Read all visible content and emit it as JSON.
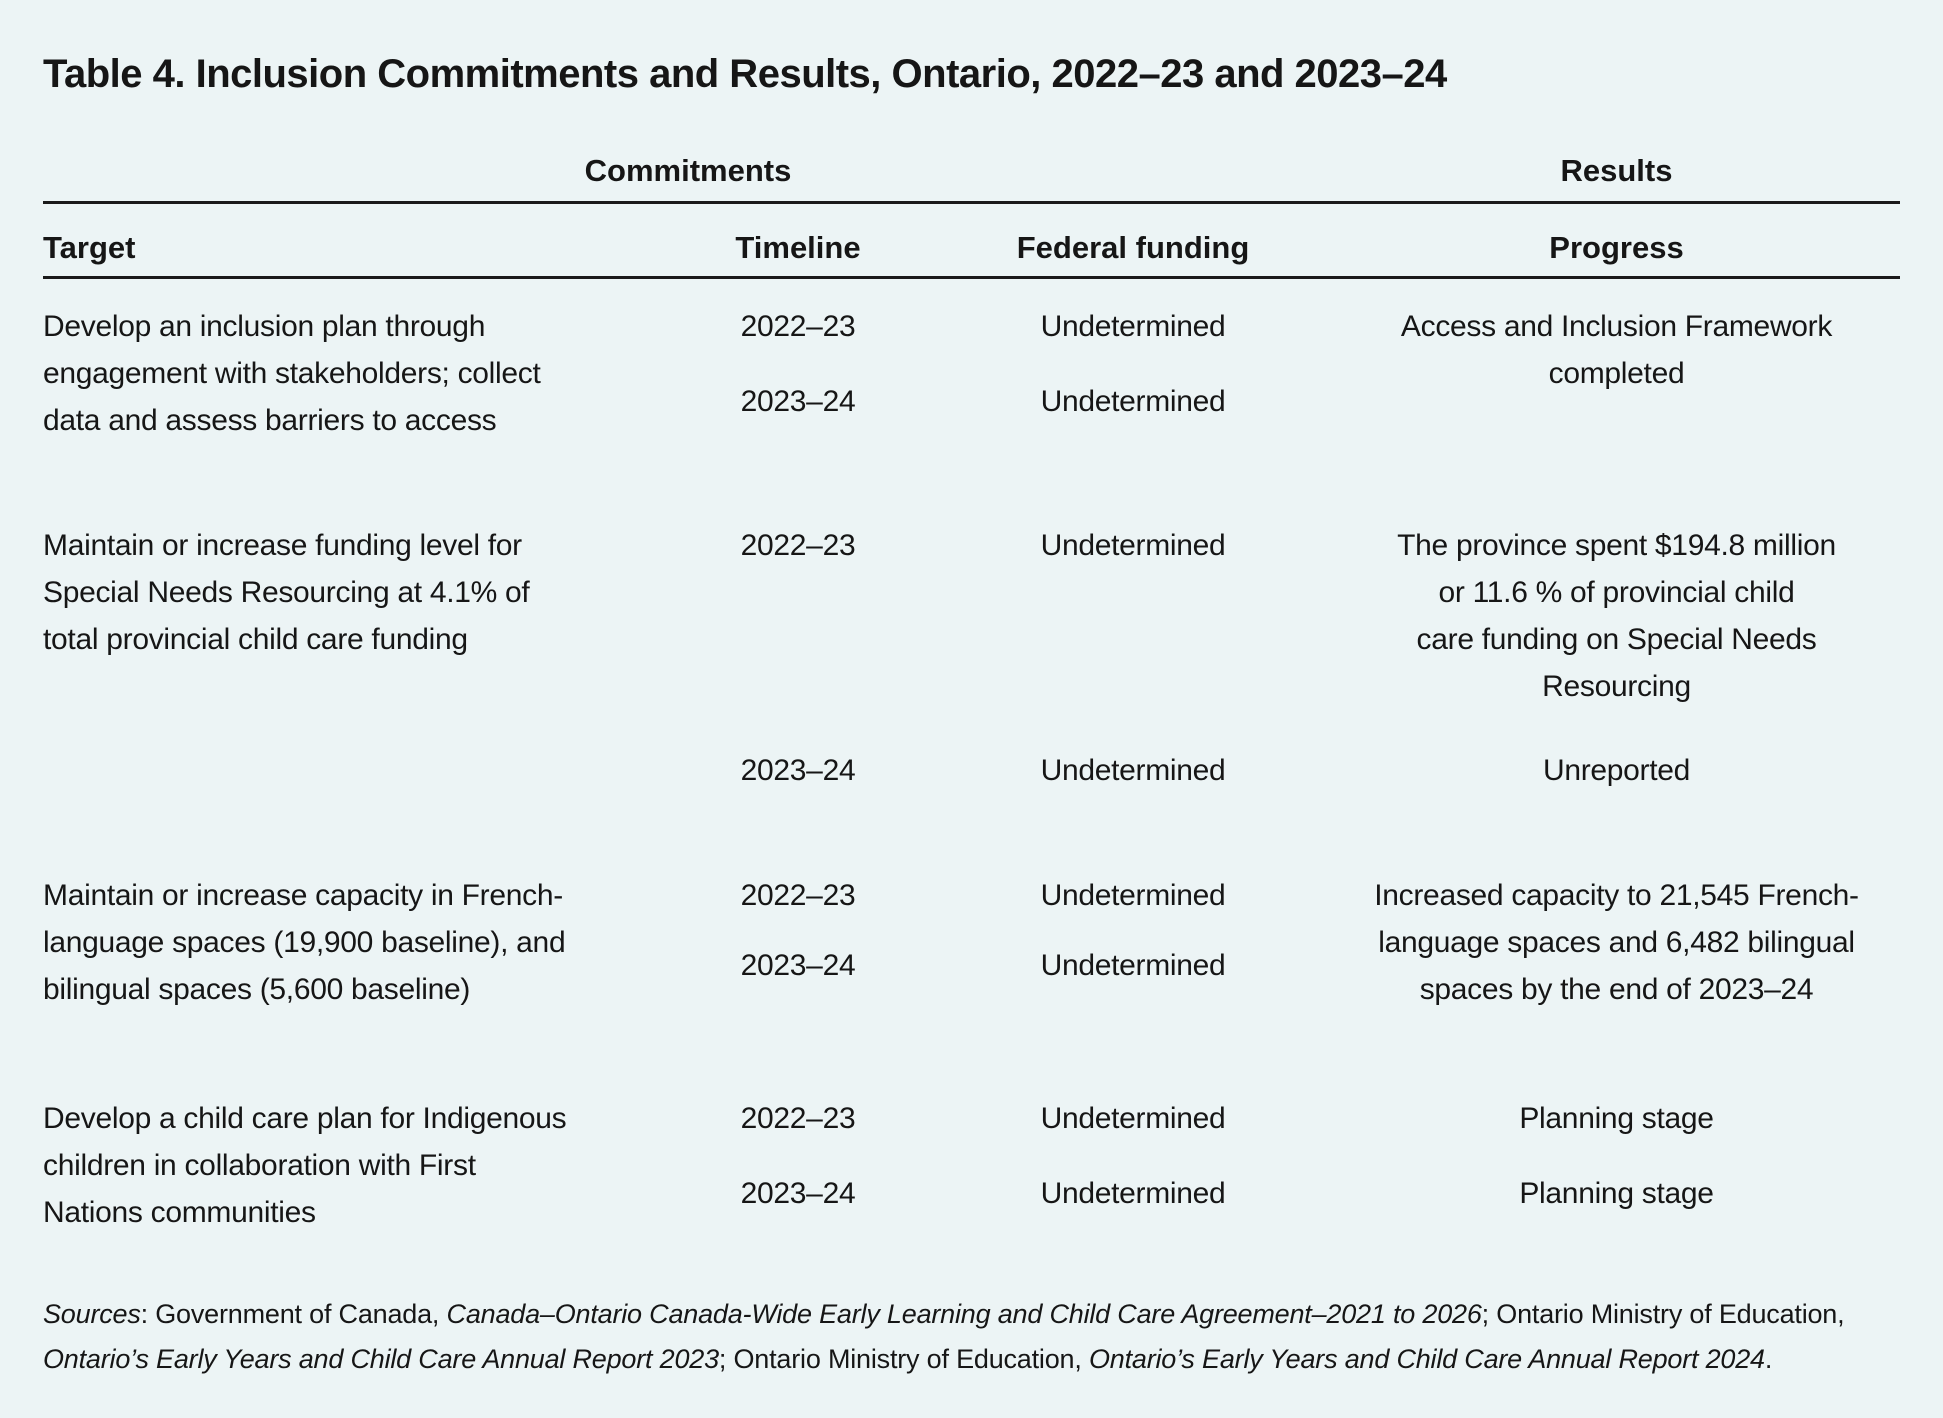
{
  "title": "Table 4. Inclusion Commitments and Results, Ontario, 2022–23 and 2023–24",
  "table": {
    "group_headers": {
      "commitments": "Commitments",
      "results": "Results"
    },
    "columns": {
      "target": "Target",
      "timeline": "Timeline",
      "federal_funding": "Federal funding",
      "progress": "Progress"
    },
    "rows": [
      {
        "target": "Develop an inclusion plan through\nengagement with stakeholders; collect\ndata and assess barriers to access",
        "entries": [
          {
            "timeline": "2022–23",
            "federal_funding": "Undetermined"
          },
          {
            "timeline": "2023–24",
            "federal_funding": "Undetermined"
          }
        ],
        "progress": "Access and Inclusion Framework\ncompleted"
      },
      {
        "target": "Maintain or increase funding level for\nSpecial Needs Resourcing at 4.1% of\ntotal provincial child care funding",
        "entries": [
          {
            "timeline": "2022–23",
            "federal_funding": "Undetermined",
            "progress": "The province spent $194.8 million\nor 11.6 % of provincial child\ncare funding on Special Needs\nResourcing"
          },
          {
            "timeline": "2023–24",
            "federal_funding": "Undetermined",
            "progress": "Unreported"
          }
        ]
      },
      {
        "target": "Maintain or increase capacity in French-\nlanguage spaces (19,900 baseline), and\nbilingual spaces (5,600 baseline)",
        "entries": [
          {
            "timeline": "2022–23",
            "federal_funding": "Undetermined"
          },
          {
            "timeline": "2023–24",
            "federal_funding": "Undetermined"
          }
        ],
        "progress": "Increased capacity to 21,545 French-\nlanguage spaces and 6,482 bilingual\nspaces by the end of 2023–24"
      },
      {
        "target": "Develop a child care plan for Indigenous\nchildren in collaboration with First\nNations communities",
        "entries": [
          {
            "timeline": "2022–23",
            "federal_funding": "Undetermined",
            "progress": "Planning stage"
          },
          {
            "timeline": "2023–24",
            "federal_funding": "Undetermined",
            "progress": "Planning stage"
          }
        ]
      }
    ]
  },
  "sources": {
    "segments": [
      {
        "text": "Sources",
        "italic": true
      },
      {
        "text": ": Government of Canada, ",
        "italic": false
      },
      {
        "text": "Canada–Ontario Canada-Wide Early Learning and Child Care Agreement–2021 to 2026",
        "italic": true
      },
      {
        "text": "; Ontario Ministry of Education, ",
        "italic": false
      },
      {
        "text": "Ontario’s Early Years and Child Care Annual Report 2023",
        "italic": true
      },
      {
        "text": "; Ontario Ministry of Education, ",
        "italic": false
      },
      {
        "text": "Ontario’s Early Years and Child Care Annual Report 2024",
        "italic": true
      },
      {
        "text": ".",
        "italic": false
      }
    ]
  },
  "colors": {
    "background": "#ecf4f5",
    "text": "#161616",
    "rule": "#1a1a1a"
  }
}
